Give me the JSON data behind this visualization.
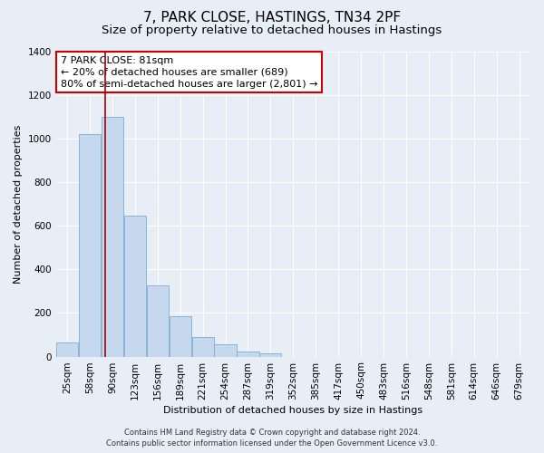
{
  "title": "7, PARK CLOSE, HASTINGS, TN34 2PF",
  "subtitle": "Size of property relative to detached houses in Hastings",
  "xlabel": "Distribution of detached houses by size in Hastings",
  "ylabel": "Number of detached properties",
  "categories": [
    "25sqm",
    "58sqm",
    "90sqm",
    "123sqm",
    "156sqm",
    "189sqm",
    "221sqm",
    "254sqm",
    "287sqm",
    "319sqm",
    "352sqm",
    "385sqm",
    "417sqm",
    "450sqm",
    "483sqm",
    "516sqm",
    "548sqm",
    "581sqm",
    "614sqm",
    "646sqm",
    "679sqm"
  ],
  "values": [
    65,
    1020,
    1100,
    648,
    325,
    185,
    90,
    55,
    25,
    15,
    0,
    0,
    0,
    0,
    0,
    0,
    0,
    0,
    0,
    0,
    0
  ],
  "bar_color": "#c5d8ed",
  "bar_edge_color": "#7aaed4",
  "vline_x": 1.7,
  "vline_color": "#aa0000",
  "annotation_line1": "7 PARK CLOSE: 81sqm",
  "annotation_line2": "← 20% of detached houses are smaller (689)",
  "annotation_line3": "80% of semi-detached houses are larger (2,801) →",
  "footer1": "Contains HM Land Registry data © Crown copyright and database right 2024.",
  "footer2": "Contains public sector information licensed under the Open Government Licence v3.0.",
  "ylim": [
    0,
    1400
  ],
  "yticks": [
    0,
    200,
    400,
    600,
    800,
    1000,
    1200,
    1400
  ],
  "background_color": "#e8eef5",
  "plot_bg_color": "#e8eef5",
  "grid_color": "#ffffff",
  "title_fontsize": 11,
  "subtitle_fontsize": 9.5,
  "ylabel_fontsize": 8,
  "xlabel_fontsize": 8,
  "tick_fontsize": 7.5,
  "footer_fontsize": 6,
  "annot_fontsize": 8
}
